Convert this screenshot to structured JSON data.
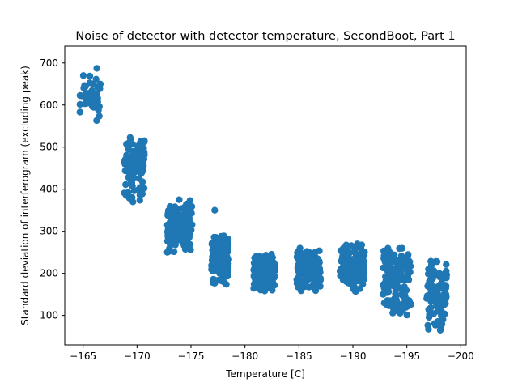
{
  "chart_data": {
    "type": "scatter",
    "title": "Noise of detector with detector temperature, SecondBoot, Part 1",
    "xlabel": "Temperature [C]",
    "ylabel": "Standard deviation of interferogram (excluding peak)",
    "xlim": [
      -163.3,
      -200.5
    ],
    "ylim": [
      30,
      740
    ],
    "x_axis_reversed": true,
    "xticks": [
      -165,
      -170,
      -175,
      -180,
      -185,
      -190,
      -195,
      -200
    ],
    "xtick_labels": [
      "−165",
      "−170",
      "−175",
      "−180",
      "−185",
      "−190",
      "−195",
      "−200"
    ],
    "yticks": [
      100,
      200,
      300,
      400,
      500,
      600,
      700
    ],
    "ytick_labels": [
      "100",
      "200",
      "300",
      "400",
      "500",
      "600",
      "700"
    ],
    "grid": false,
    "legend": null,
    "marker_color": "#1f77b4",
    "clusters": [
      {
        "x_range": [
          -164.7,
          -166.6
        ],
        "y_range": [
          535,
          705
        ],
        "count": 45
      },
      {
        "x_range": [
          -168.8,
          -170.7
        ],
        "y_range": [
          358,
          555
        ],
        "count": 90
      },
      {
        "x_range": [
          -172.8,
          -175.1
        ],
        "y_range": [
          245,
          378
        ],
        "count": 160
      },
      {
        "x_range": [
          -176.9,
          -178.5
        ],
        "y_range": [
          170,
          300
        ],
        "count": 170
      },
      {
        "x_range": [
          -180.8,
          -182.8
        ],
        "y_range": [
          155,
          250
        ],
        "count": 180
      },
      {
        "x_range": [
          -184.8,
          -187.0
        ],
        "y_range": [
          155,
          262
        ],
        "count": 160
      },
      {
        "x_range": [
          -188.8,
          -191.1
        ],
        "y_range": [
          150,
          275
        ],
        "count": 150
      },
      {
        "x_range": [
          -192.8,
          -195.4
        ],
        "y_range": [
          85,
          275
        ],
        "count": 160
      },
      {
        "x_range": [
          -196.8,
          -198.7
        ],
        "y_range": [
          55,
          240
        ],
        "count": 110
      }
    ],
    "outliers": [
      {
        "x": -177.2,
        "y": 350
      }
    ]
  }
}
